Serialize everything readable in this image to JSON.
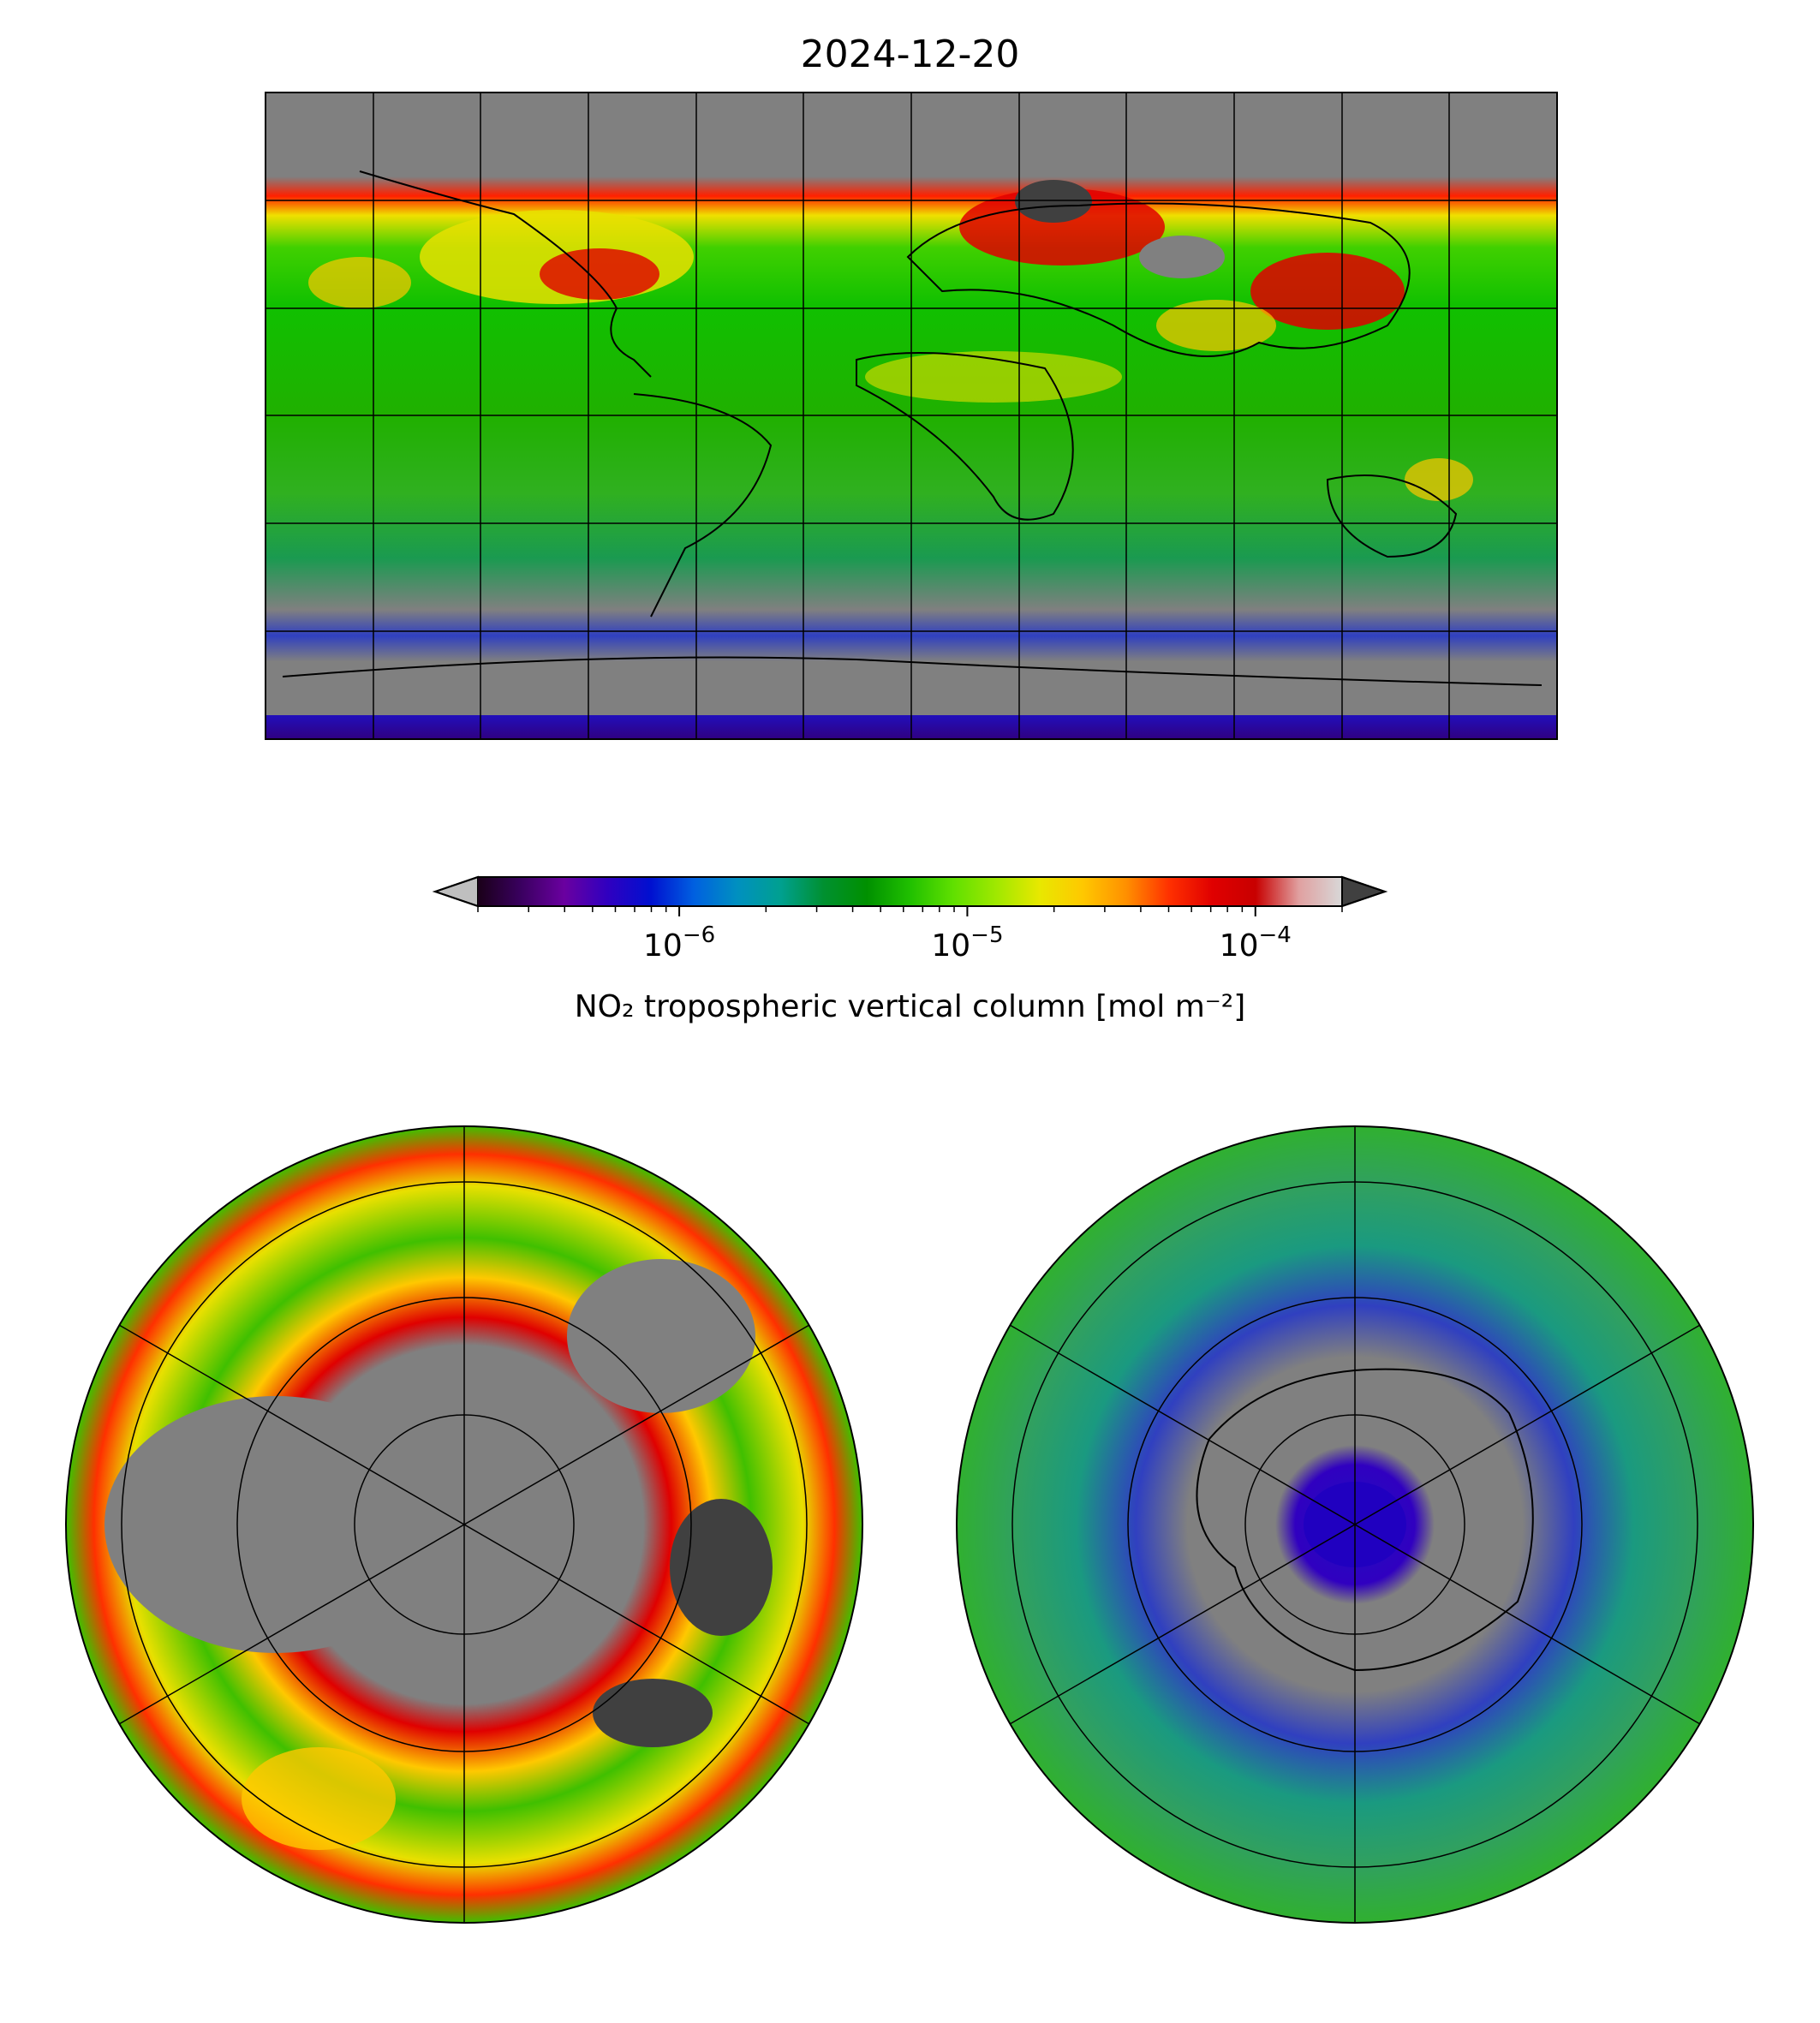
{
  "title": "2024-12-20",
  "colorbar": {
    "label": "NO₂ tropospheric vertical column [mol m⁻²]",
    "scale": "log",
    "range": [
      2e-07,
      0.0002
    ],
    "extend": "both",
    "ticks": [
      {
        "value": 1e-06,
        "base": "10",
        "exp": "−6"
      },
      {
        "value": 1e-05,
        "base": "10",
        "exp": "−5"
      },
      {
        "value": 0.0001,
        "base": "10",
        "exp": "−4"
      }
    ],
    "colors": [
      "#1a0018",
      "#3a0060",
      "#6a00a0",
      "#3000c0",
      "#0010d0",
      "#0060e0",
      "#0090c0",
      "#00a090",
      "#009030",
      "#009000",
      "#20c000",
      "#60e000",
      "#a0e800",
      "#e8e800",
      "#ffc800",
      "#ff9000",
      "#ff3000",
      "#e00000",
      "#c80000",
      "#e0a0a0",
      "#d8d8d8"
    ],
    "under_color": "#bfbfbf",
    "over_color": "#404040"
  },
  "maps": {
    "global": {
      "projection": "equirectangular",
      "land_fill": "#808080"
    },
    "north_polar": {
      "projection": "north-polar-stereographic"
    },
    "south_polar": {
      "projection": "south-polar-stereographic"
    }
  }
}
